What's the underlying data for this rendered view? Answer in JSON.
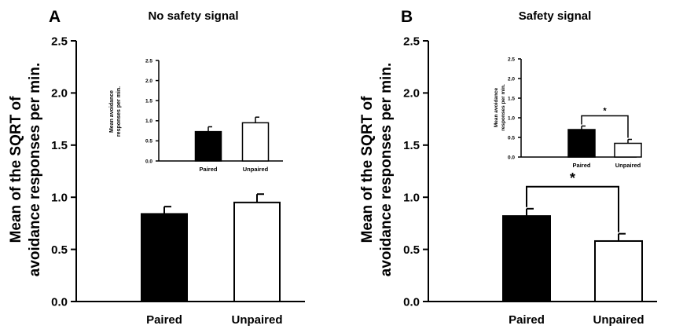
{
  "panels": [
    {
      "letter": "A",
      "title": "No safety signal",
      "ylabel_line1": "Mean of the SQRT of",
      "ylabel_line2": "avoidance responses per min."
    },
    {
      "letter": "B",
      "title": "Safety signal",
      "ylabel_line1": "Mean of the SQRT of",
      "ylabel_line2": "avoidance responses per min."
    }
  ],
  "insets": [
    {
      "ylabel_line1": "Mean avoidance",
      "ylabel_line2": "responses per min."
    },
    {
      "ylabel_line1": "Mean avoidance",
      "ylabel_line2": "responses per min."
    }
  ],
  "chart_data": [
    {
      "type": "bar",
      "panel": "A",
      "title": "No safety signal",
      "ylabel": "Mean of the SQRT of avoidance responses per min.",
      "categories": [
        "Paired",
        "Unpaired"
      ],
      "values": [
        0.84,
        0.95
      ],
      "errors": [
        0.07,
        0.08
      ],
      "bar_fills": [
        "#000000",
        "#ffffff"
      ],
      "ylim": [
        0,
        2.5
      ],
      "yticks": [
        "0.0",
        "0.5",
        "1.0",
        "1.5",
        "2.0",
        "2.5"
      ],
      "significance": null
    },
    {
      "type": "bar",
      "panel": "A-inset",
      "ylabel": "Mean avoidance responses per min.",
      "categories": [
        "Paired",
        "Unpaired"
      ],
      "values": [
        0.73,
        0.95
      ],
      "errors": [
        0.12,
        0.14
      ],
      "bar_fills": [
        "#000000",
        "#ffffff"
      ],
      "ylim": [
        0,
        2.5
      ],
      "yticks": [
        "0.0",
        "0.5",
        "1.0",
        "1.5",
        "2.0",
        "2.5"
      ],
      "significance": null
    },
    {
      "type": "bar",
      "panel": "B",
      "title": "Safety signal",
      "ylabel": "Mean of the SQRT of avoidance responses per min.",
      "categories": [
        "Paired",
        "Unpaired"
      ],
      "values": [
        0.82,
        0.58
      ],
      "errors": [
        0.07,
        0.07
      ],
      "bar_fills": [
        "#000000",
        "#ffffff"
      ],
      "ylim": [
        0,
        2.5
      ],
      "yticks": [
        "0.0",
        "0.5",
        "1.0",
        "1.5",
        "2.0",
        "2.5"
      ],
      "significance": "*"
    },
    {
      "type": "bar",
      "panel": "B-inset",
      "ylabel": "Mean avoidance responses per min.",
      "categories": [
        "Paired",
        "Unpaired"
      ],
      "values": [
        0.7,
        0.35
      ],
      "errors": [
        0.09,
        0.1
      ],
      "bar_fills": [
        "#000000",
        "#ffffff"
      ],
      "ylim": [
        0,
        2.5
      ],
      "yticks": [
        "0.0",
        "0.5",
        "1.0",
        "1.5",
        "2.0",
        "2.5"
      ],
      "significance": "*"
    }
  ]
}
